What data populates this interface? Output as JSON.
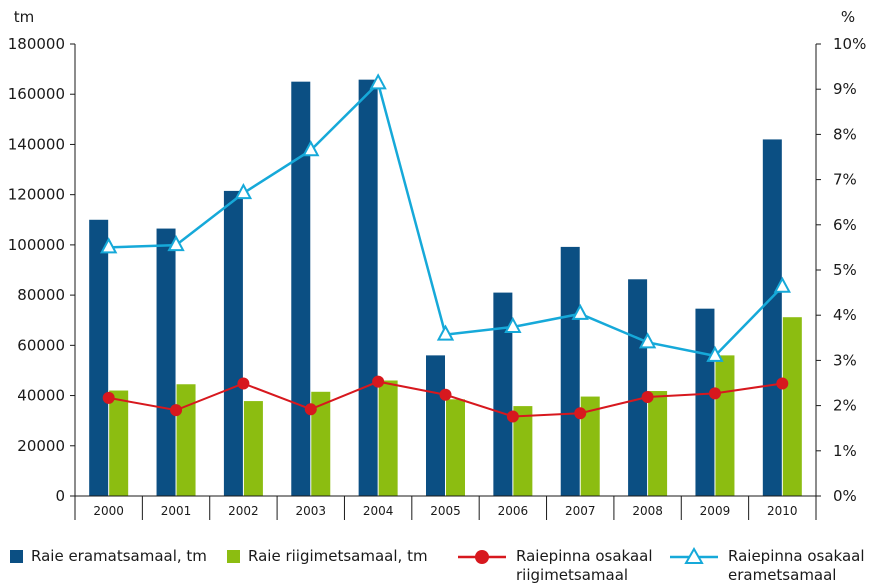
{
  "chart_data": {
    "type": "bar",
    "categories": [
      "2000",
      "2001",
      "2002",
      "2003",
      "2004",
      "2005",
      "2006",
      "2007",
      "2008",
      "2009",
      "2010"
    ],
    "left_axis": {
      "unit": "tm",
      "ylim": [
        0,
        180000
      ],
      "ticks": [
        "0",
        "20000",
        "40000",
        "60000",
        "80000",
        "100000",
        "120000",
        "140000",
        "160000",
        "180000"
      ]
    },
    "right_axis": {
      "unit": "%",
      "ylim": [
        0,
        10
      ],
      "ticks": [
        "0%",
        "1%",
        "2%",
        "3%",
        "4%",
        "5%",
        "6%",
        "7%",
        "8%",
        "9%",
        "10%"
      ]
    },
    "series": [
      {
        "name": "Raie eramatsamaal, tm",
        "kind": "bar",
        "axis": "left",
        "color": "#0b4f83",
        "values": [
          110000,
          106500,
          121500,
          165000,
          165800,
          56000,
          81000,
          99200,
          86300,
          74600,
          142000
        ]
      },
      {
        "name": "Raie riigimetsamaal, tm",
        "kind": "bar",
        "axis": "left",
        "color": "#8cbd11",
        "values": [
          42000,
          44500,
          37800,
          41500,
          46000,
          38500,
          35800,
          39600,
          41800,
          56000,
          71200
        ]
      },
      {
        "name": "Raiepinna osakaal riigimetsamaal",
        "kind": "line",
        "axis": "right",
        "color": "#d7181e",
        "marker": "circle",
        "values": [
          2.17,
          1.9,
          2.49,
          1.92,
          2.53,
          2.24,
          1.76,
          1.83,
          2.19,
          2.27,
          2.49
        ]
      },
      {
        "name": "Raiepinna osakaal erametsamaal",
        "kind": "line",
        "axis": "right",
        "color": "#16a9d9",
        "marker": "triangle",
        "values": [
          5.5,
          5.55,
          6.7,
          7.65,
          9.13,
          3.57,
          3.74,
          4.03,
          3.4,
          3.1,
          4.63
        ]
      }
    ],
    "legend": {
      "placement": "bottom",
      "items": [
        {
          "line1": "Raie eramatsamaal, tm",
          "line2": ""
        },
        {
          "line1": "Raie riigimetsamaal, tm",
          "line2": ""
        },
        {
          "line1": "Raiepinna osakaal",
          "line2": "riigimetsamaal"
        },
        {
          "line1": "Raiepinna osakaal",
          "line2": "erametsamaal"
        }
      ]
    },
    "grid": false
  }
}
